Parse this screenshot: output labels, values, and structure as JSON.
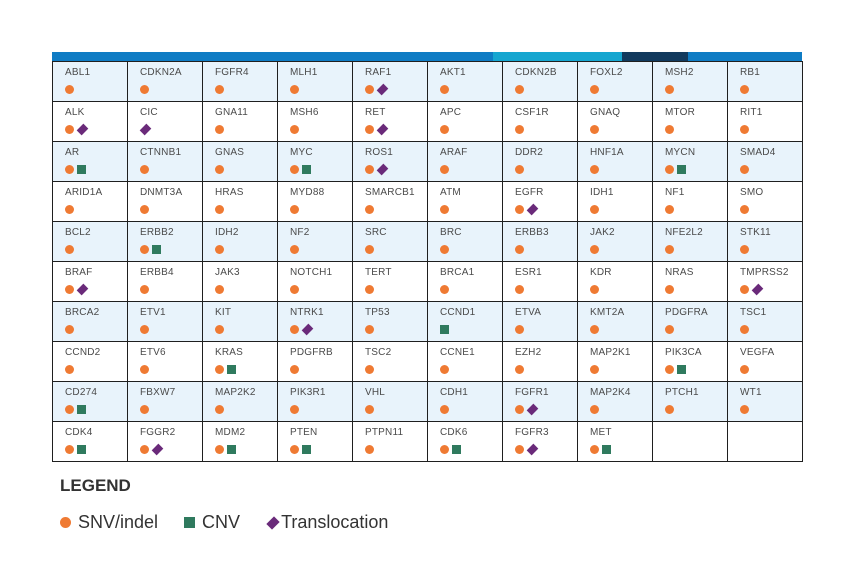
{
  "colors": {
    "snv": "#ef7a33",
    "cnv": "#2f7a5e",
    "translocation": "#6a2a7a",
    "bar": [
      "#0f7cc4",
      "#16a6d0",
      "#123a5e",
      "#0f7cc4"
    ]
  },
  "rows": [
    [
      {
        "g": "ABL1",
        "m": [
          "snv"
        ]
      },
      {
        "g": "CDKN2A",
        "m": [
          "snv"
        ]
      },
      {
        "g": "FGFR4",
        "m": [
          "snv"
        ]
      },
      {
        "g": "MLH1",
        "m": [
          "snv"
        ]
      },
      {
        "g": "RAF1",
        "m": [
          "snv",
          "translocation"
        ]
      },
      {
        "g": "AKT1",
        "m": [
          "snv"
        ]
      },
      {
        "g": "CDKN2B",
        "m": [
          "snv"
        ]
      },
      {
        "g": "FOXL2",
        "m": [
          "snv"
        ]
      },
      {
        "g": "MSH2",
        "m": [
          "snv"
        ]
      },
      {
        "g": "RB1",
        "m": [
          "snv"
        ]
      }
    ],
    [
      {
        "g": "ALK",
        "m": [
          "snv",
          "translocation"
        ]
      },
      {
        "g": "CIC",
        "m": [
          "translocation"
        ]
      },
      {
        "g": "GNA11",
        "m": [
          "snv"
        ]
      },
      {
        "g": "MSH6",
        "m": [
          "snv"
        ]
      },
      {
        "g": "RET",
        "m": [
          "snv",
          "translocation"
        ]
      },
      {
        "g": "APC",
        "m": [
          "snv"
        ]
      },
      {
        "g": "CSF1R",
        "m": [
          "snv"
        ]
      },
      {
        "g": "GNAQ",
        "m": [
          "snv"
        ]
      },
      {
        "g": "MTOR",
        "m": [
          "snv"
        ]
      },
      {
        "g": "RIT1",
        "m": [
          "snv"
        ]
      }
    ],
    [
      {
        "g": "AR",
        "m": [
          "snv",
          "cnv"
        ]
      },
      {
        "g": "CTNNB1",
        "m": [
          "snv"
        ]
      },
      {
        "g": "GNAS",
        "m": [
          "snv"
        ]
      },
      {
        "g": "MYC",
        "m": [
          "snv",
          "cnv"
        ]
      },
      {
        "g": "ROS1",
        "m": [
          "snv",
          "translocation"
        ]
      },
      {
        "g": "ARAF",
        "m": [
          "snv"
        ]
      },
      {
        "g": "DDR2",
        "m": [
          "snv"
        ]
      },
      {
        "g": "HNF1A",
        "m": [
          "snv"
        ]
      },
      {
        "g": "MYCN",
        "m": [
          "snv",
          "cnv"
        ]
      },
      {
        "g": "SMAD4",
        "m": [
          "snv"
        ]
      }
    ],
    [
      {
        "g": "ARID1A",
        "m": [
          "snv"
        ]
      },
      {
        "g": "DNMT3A",
        "m": [
          "snv"
        ]
      },
      {
        "g": "HRAS",
        "m": [
          "snv"
        ]
      },
      {
        "g": "MYD88",
        "m": [
          "snv"
        ]
      },
      {
        "g": "SMARCB1",
        "m": [
          "snv"
        ]
      },
      {
        "g": "ATM",
        "m": [
          "snv"
        ]
      },
      {
        "g": "EGFR",
        "m": [
          "snv",
          "translocation"
        ]
      },
      {
        "g": "IDH1",
        "m": [
          "snv"
        ]
      },
      {
        "g": "NF1",
        "m": [
          "snv"
        ]
      },
      {
        "g": "SMO",
        "m": [
          "snv"
        ]
      }
    ],
    [
      {
        "g": "BCL2",
        "m": [
          "snv"
        ]
      },
      {
        "g": "ERBB2",
        "m": [
          "snv",
          "cnv"
        ]
      },
      {
        "g": "IDH2",
        "m": [
          "snv"
        ]
      },
      {
        "g": "NF2",
        "m": [
          "snv"
        ]
      },
      {
        "g": "SRC",
        "m": [
          "snv"
        ]
      },
      {
        "g": "BRC",
        "m": [
          "snv"
        ]
      },
      {
        "g": "ERBB3",
        "m": [
          "snv"
        ]
      },
      {
        "g": "JAK2",
        "m": [
          "snv"
        ]
      },
      {
        "g": "NFE2L2",
        "m": [
          "snv"
        ]
      },
      {
        "g": "STK11",
        "m": [
          "snv"
        ]
      }
    ],
    [
      {
        "g": "BRAF",
        "m": [
          "snv",
          "translocation"
        ]
      },
      {
        "g": "ERBB4",
        "m": [
          "snv"
        ]
      },
      {
        "g": "JAK3",
        "m": [
          "snv"
        ]
      },
      {
        "g": "NOTCH1",
        "m": [
          "snv"
        ]
      },
      {
        "g": "TERT",
        "m": [
          "snv"
        ]
      },
      {
        "g": "BRCA1",
        "m": [
          "snv"
        ]
      },
      {
        "g": "ESR1",
        "m": [
          "snv"
        ]
      },
      {
        "g": "KDR",
        "m": [
          "snv"
        ]
      },
      {
        "g": "NRAS",
        "m": [
          "snv"
        ]
      },
      {
        "g": "TMPRSS2",
        "m": [
          "snv",
          "translocation"
        ]
      }
    ],
    [
      {
        "g": "BRCA2",
        "m": [
          "snv"
        ]
      },
      {
        "g": "ETV1",
        "m": [
          "snv"
        ]
      },
      {
        "g": "KIT",
        "m": [
          "snv"
        ]
      },
      {
        "g": "NTRK1",
        "m": [
          "snv",
          "translocation"
        ]
      },
      {
        "g": "TP53",
        "m": [
          "snv"
        ]
      },
      {
        "g": "CCND1",
        "m": [
          "cnv"
        ]
      },
      {
        "g": "ETVA",
        "m": [
          "snv"
        ]
      },
      {
        "g": "KMT2A",
        "m": [
          "snv"
        ]
      },
      {
        "g": "PDGFRA",
        "m": [
          "snv"
        ]
      },
      {
        "g": "TSC1",
        "m": [
          "snv"
        ]
      }
    ],
    [
      {
        "g": "CCND2",
        "m": [
          "snv"
        ]
      },
      {
        "g": "ETV6",
        "m": [
          "snv"
        ]
      },
      {
        "g": "KRAS",
        "m": [
          "snv",
          "cnv"
        ]
      },
      {
        "g": "PDGFRB",
        "m": [
          "snv"
        ]
      },
      {
        "g": "TSC2",
        "m": [
          "snv"
        ]
      },
      {
        "g": "CCNE1",
        "m": [
          "snv"
        ]
      },
      {
        "g": "EZH2",
        "m": [
          "snv"
        ]
      },
      {
        "g": "MAP2K1",
        "m": [
          "snv"
        ]
      },
      {
        "g": "PIK3CA",
        "m": [
          "snv",
          "cnv"
        ]
      },
      {
        "g": "VEGFA",
        "m": [
          "snv"
        ]
      }
    ],
    [
      {
        "g": "CD274",
        "m": [
          "snv",
          "cnv"
        ]
      },
      {
        "g": "FBXW7",
        "m": [
          "snv"
        ]
      },
      {
        "g": "MAP2K2",
        "m": [
          "snv"
        ]
      },
      {
        "g": "PIK3R1",
        "m": [
          "snv"
        ]
      },
      {
        "g": "VHL",
        "m": [
          "snv"
        ]
      },
      {
        "g": "CDH1",
        "m": [
          "snv"
        ]
      },
      {
        "g": "FGFR1",
        "m": [
          "snv",
          "translocation"
        ]
      },
      {
        "g": "MAP2K4",
        "m": [
          "snv"
        ]
      },
      {
        "g": "PTCH1",
        "m": [
          "snv"
        ]
      },
      {
        "g": "WT1",
        "m": [
          "snv"
        ]
      }
    ],
    [
      {
        "g": "CDK4",
        "m": [
          "snv",
          "cnv"
        ]
      },
      {
        "g": "FGGR2",
        "m": [
          "snv",
          "translocation"
        ]
      },
      {
        "g": "MDM2",
        "m": [
          "snv",
          "cnv"
        ]
      },
      {
        "g": "PTEN",
        "m": [
          "snv",
          "cnv"
        ]
      },
      {
        "g": "PTPN11",
        "m": [
          "snv"
        ]
      },
      {
        "g": "CDK6",
        "m": [
          "snv",
          "cnv"
        ]
      },
      {
        "g": "FGFR3",
        "m": [
          "snv",
          "translocation"
        ]
      },
      {
        "g": "MET",
        "m": [
          "snv",
          "cnv"
        ]
      },
      {
        "g": "",
        "m": []
      },
      {
        "g": "",
        "m": []
      }
    ]
  ],
  "legend": {
    "title": "LEGEND",
    "items": [
      {
        "type": "snv",
        "label": "SNV/indel"
      },
      {
        "type": "cnv",
        "label": "CNV"
      },
      {
        "type": "translocation",
        "label": "Translocation"
      }
    ]
  }
}
